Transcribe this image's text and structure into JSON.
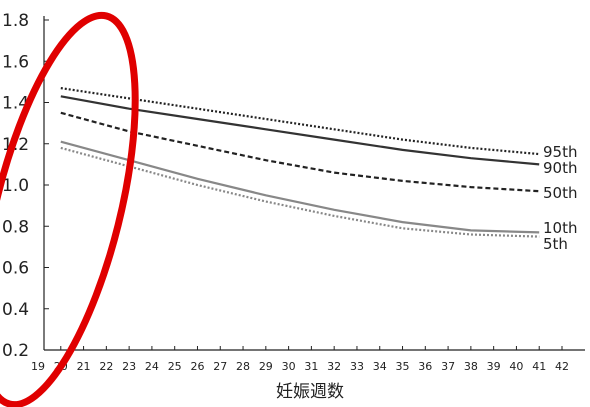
{
  "chart_data": {
    "type": "line",
    "title": "",
    "xlabel": "妊娠週数",
    "ylabel": "",
    "xlim": [
      19,
      42
    ],
    "ylim": [
      0.2,
      1.8
    ],
    "x_ticks": [
      "19",
      "20",
      "21",
      "22",
      "23",
      "24",
      "25",
      "26",
      "27",
      "28",
      "29",
      "30",
      "31",
      "32",
      "33",
      "34",
      "35",
      "36",
      "37",
      "38",
      "39",
      "40",
      "41",
      "42"
    ],
    "y_ticks": [
      "0.2",
      "0.4",
      "0.6",
      "0.8",
      "1.0",
      "1.2",
      "1.4",
      "1.6",
      "1.8"
    ],
    "x": [
      20,
      23,
      26,
      29,
      32,
      35,
      38,
      41
    ],
    "series": [
      {
        "name": "95th",
        "style": "dotted",
        "color": "#222222",
        "values": [
          1.47,
          1.42,
          1.37,
          1.32,
          1.27,
          1.22,
          1.18,
          1.15
        ]
      },
      {
        "name": "90th",
        "style": "solid",
        "color": "#333333",
        "values": [
          1.43,
          1.37,
          1.32,
          1.27,
          1.22,
          1.17,
          1.13,
          1.1
        ]
      },
      {
        "name": "50th",
        "style": "dashed",
        "color": "#222222",
        "values": [
          1.35,
          1.26,
          1.19,
          1.12,
          1.06,
          1.02,
          0.99,
          0.97
        ]
      },
      {
        "name": "10th",
        "style": "solid",
        "color": "#888888",
        "values": [
          1.21,
          1.12,
          1.03,
          0.95,
          0.88,
          0.82,
          0.78,
          0.77
        ]
      },
      {
        "name": "5th",
        "style": "dotted",
        "color": "#888888",
        "values": [
          1.18,
          1.09,
          1.0,
          0.92,
          0.85,
          0.79,
          0.76,
          0.75
        ]
      }
    ],
    "grid": false,
    "legend": "right",
    "annotation": {
      "shape": "ellipse",
      "color": "#e00000"
    }
  }
}
